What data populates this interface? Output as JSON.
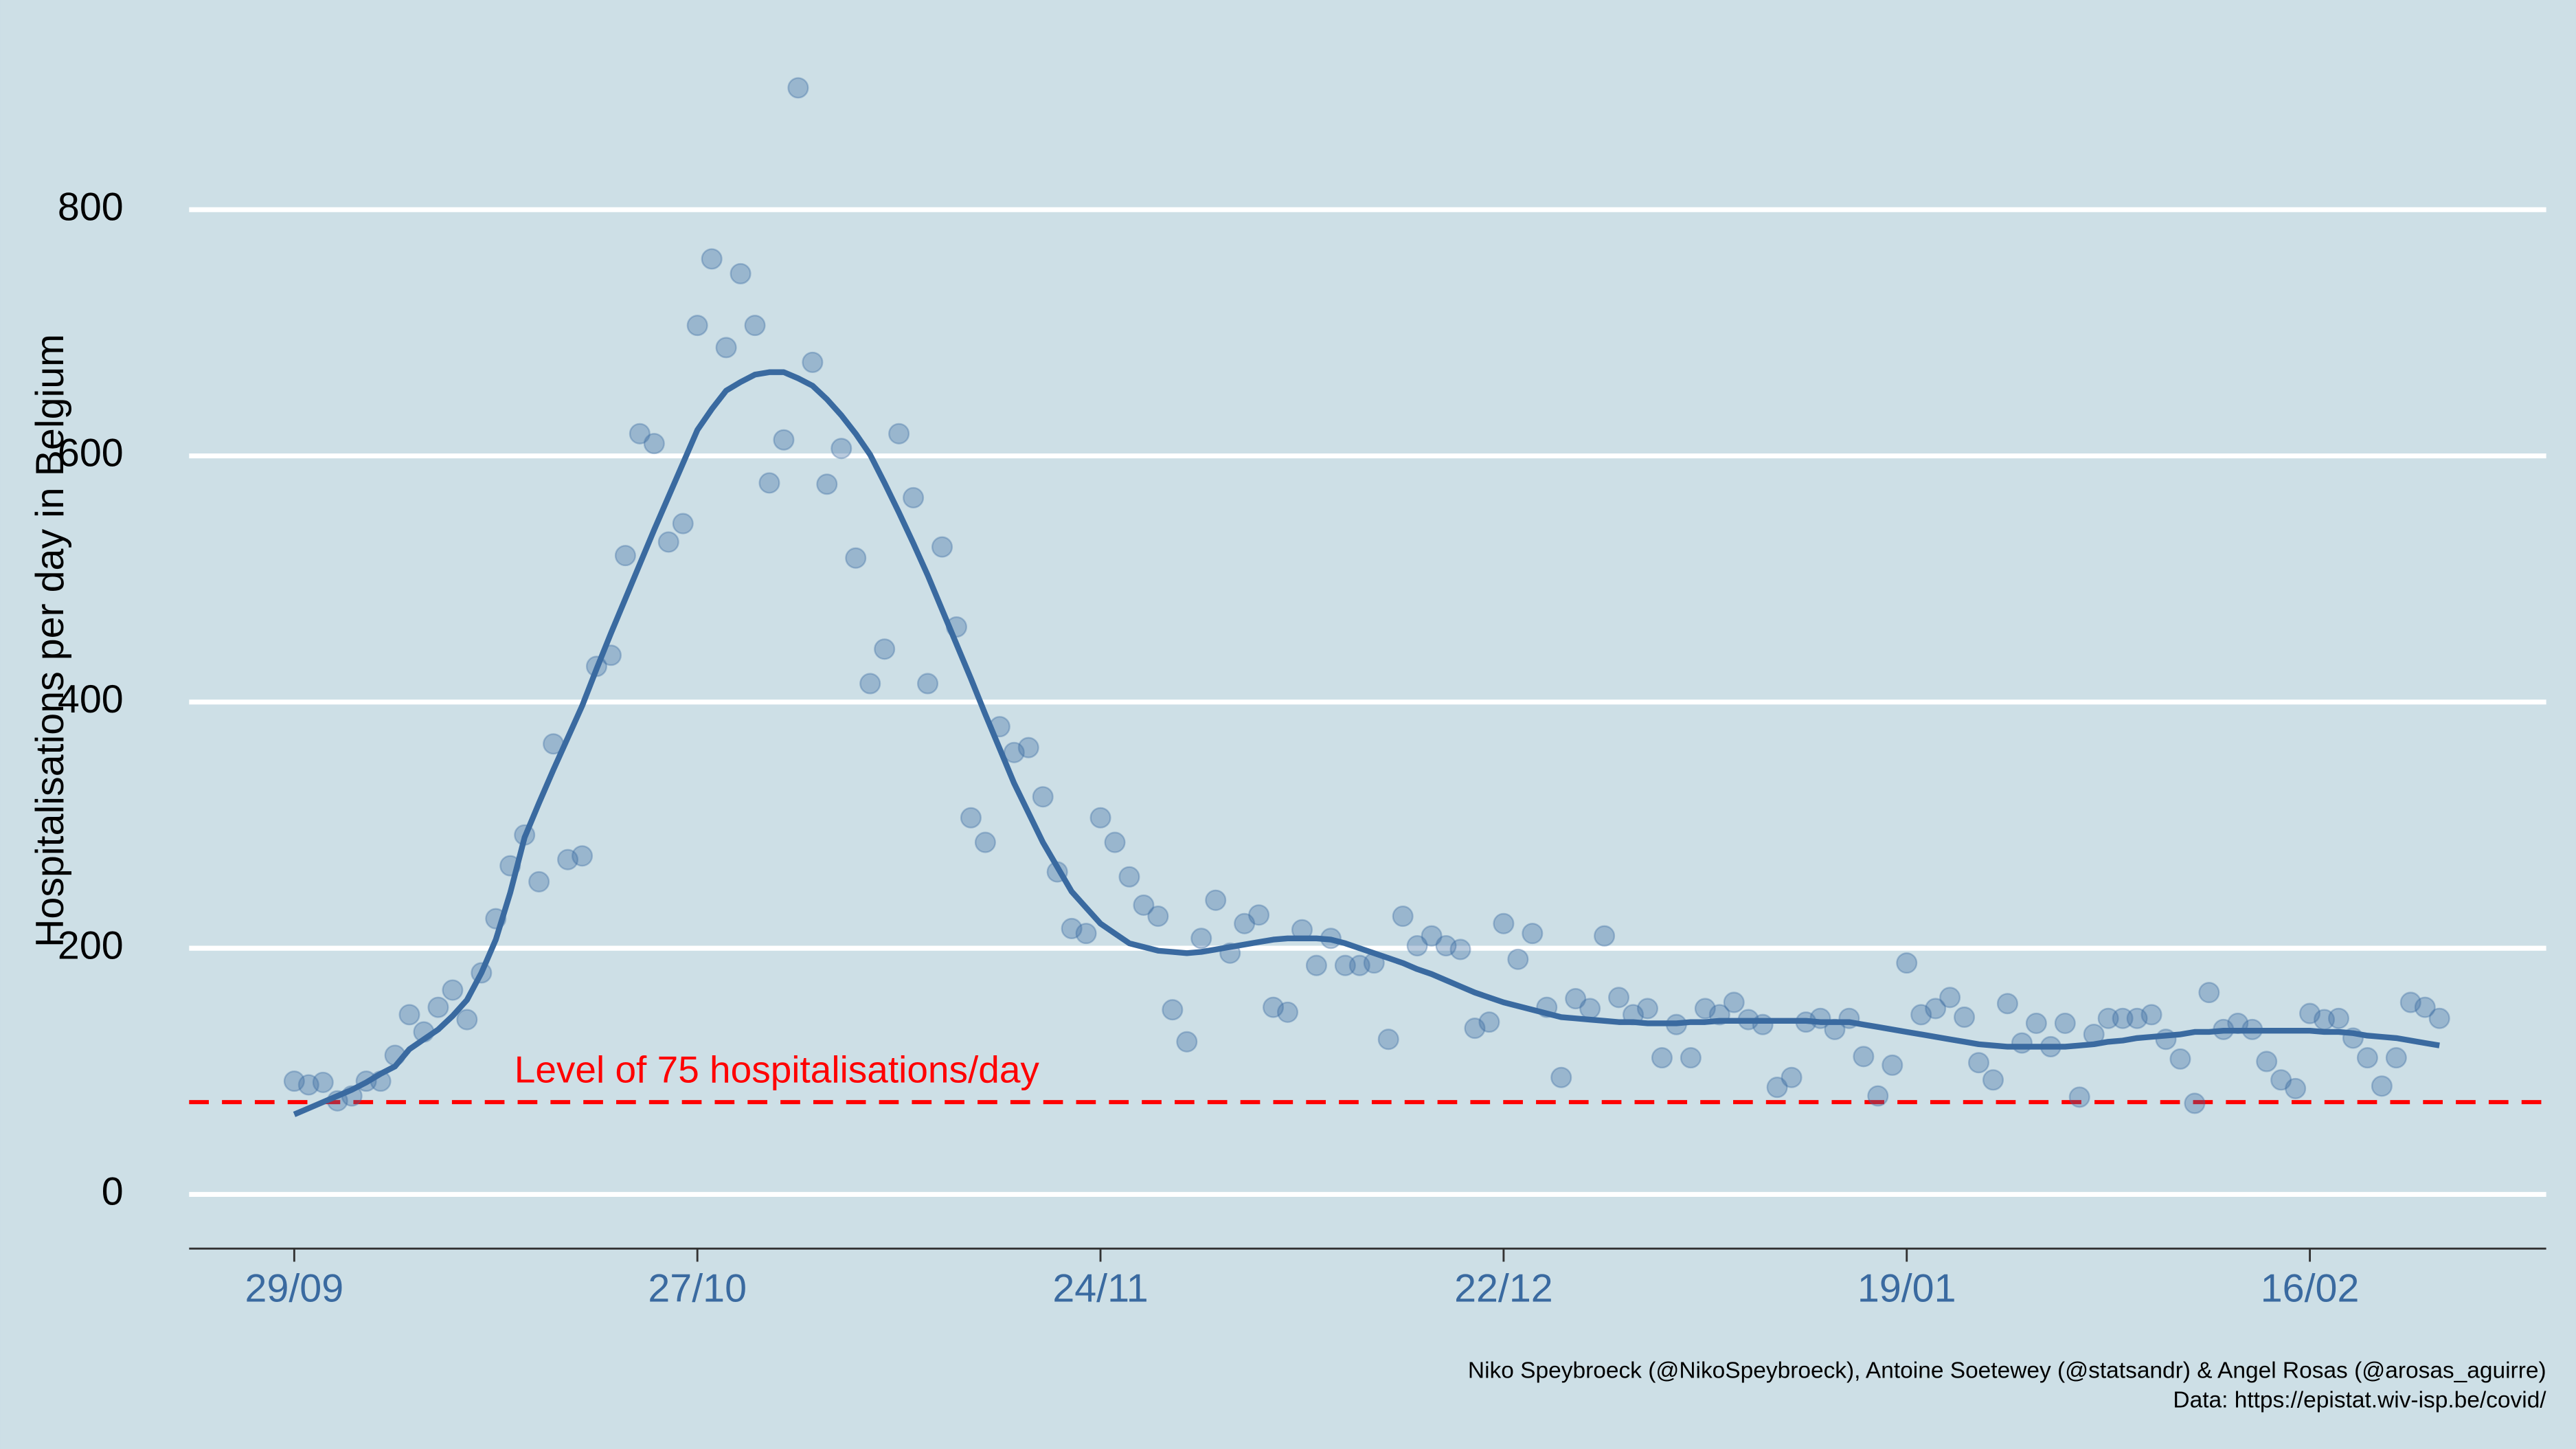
{
  "chart_data": {
    "type": "scatter",
    "y_label": "Hospitalisations per day in Belgium",
    "caption": [
      "Niko Speybroeck (@NikoSpeybroeck), Antoine Soetewey (@statsandr) & Angel Rosas (@arosas_aguirre)",
      "Data: https://epistat.wiv-isp.be/covid/"
    ],
    "categories": [
      "29/09",
      null,
      null,
      null,
      null,
      null,
      null,
      null,
      null,
      null,
      null,
      null,
      null,
      null,
      null,
      null,
      null,
      null,
      null,
      null,
      null,
      null,
      null,
      null,
      null,
      null,
      null,
      null,
      "27/10",
      null,
      null,
      null,
      null,
      null,
      null,
      null,
      null,
      null,
      null,
      null,
      null,
      null,
      null,
      null,
      null,
      null,
      null,
      null,
      null,
      null,
      null,
      null,
      null,
      null,
      null,
      null,
      "24/11",
      null,
      null,
      null,
      null,
      null,
      null,
      null,
      null,
      null,
      null,
      null,
      null,
      null,
      null,
      null,
      null,
      null,
      null,
      null,
      null,
      null,
      null,
      null,
      null,
      null,
      null,
      null,
      "22/12",
      null,
      null,
      null,
      null,
      null,
      null,
      null,
      null,
      null,
      null,
      null,
      null,
      null,
      null,
      null,
      null,
      null,
      null,
      null,
      null,
      null,
      null,
      null,
      null,
      null,
      null,
      null,
      "19/01",
      null,
      null,
      null,
      null,
      null,
      null,
      null,
      null,
      null,
      null,
      null,
      null,
      null,
      null,
      null,
      null,
      null,
      null,
      null,
      null,
      null,
      null,
      null,
      null,
      null,
      null,
      null,
      "16/02",
      null,
      null,
      null,
      null,
      null,
      null,
      null,
      null,
      null
    ],
    "series": [
      {
        "type": "scatter",
        "color": "#3a6aa0",
        "values": [
          92,
          89,
          91,
          76,
          80,
          92,
          92,
          113,
          146,
          132,
          152,
          166,
          142,
          180,
          224,
          267,
          292,
          254,
          366,
          272,
          275,
          429,
          438,
          519,
          618,
          610,
          530,
          545,
          706,
          760,
          688,
          748,
          706,
          578,
          613,
          899,
          676,
          577,
          606,
          517,
          415,
          443,
          618,
          566,
          415,
          526,
          461,
          306,
          286,
          380,
          359,
          363,
          323,
          262,
          216,
          212,
          306,
          286,
          258,
          235,
          226,
          150,
          124,
          208,
          239,
          196,
          220,
          227,
          152,
          148,
          215,
          186,
          208,
          186,
          186,
          188,
          126,
          226,
          202,
          210,
          202,
          199,
          135,
          140,
          220,
          191,
          212,
          152,
          95,
          159,
          151,
          210,
          160,
          146,
          151,
          111,
          138,
          111,
          151,
          146,
          156,
          142,
          138,
          87,
          95,
          140,
          143,
          134,
          143,
          112,
          80,
          105,
          188,
          146,
          151,
          160,
          144,
          107,
          93,
          155,
          123,
          139,
          120,
          139,
          79,
          130,
          143,
          143,
          143,
          146,
          126,
          110,
          74,
          164,
          134,
          139,
          134,
          108,
          93,
          86,
          147,
          142,
          143,
          127,
          111,
          88,
          111,
          156,
          152,
          143
        ]
      },
      {
        "type": "line",
        "color": "#3a6aa0",
        "values": [
          65,
          70,
          75,
          80,
          85,
          91,
          98,
          104,
          118,
          126,
          134,
          145,
          158,
          180,
          207,
          245,
          290,
          318,
          345,
          371,
          397,
          427,
          456,
          484,
          512,
          540,
          567,
          594,
          621,
          638,
          653,
          660,
          666,
          668,
          668,
          663,
          657,
          646,
          633,
          618,
          601,
          578,
          554,
          529,
          503,
          475,
          447,
          419,
          390,
          362,
          334,
          310,
          286,
          266,
          246,
          233,
          220,
          212,
          204,
          201,
          198,
          197,
          196,
          197,
          199,
          201,
          203,
          205,
          207,
          208,
          208,
          208,
          207,
          204,
          200,
          196,
          192,
          188,
          183,
          179,
          174,
          169,
          164,
          160,
          156,
          153,
          150,
          147,
          144,
          143,
          142,
          141,
          140,
          140,
          139,
          139,
          139,
          140,
          140,
          141,
          141,
          141,
          141,
          141,
          141,
          141,
          140,
          140,
          140,
          138,
          136,
          134,
          132,
          130,
          128,
          126,
          124,
          122,
          121,
          120,
          120,
          120,
          120,
          120,
          121,
          122,
          124,
          125,
          127,
          128,
          129,
          130,
          132,
          132,
          133,
          133,
          133,
          133,
          133,
          133,
          133,
          132,
          132,
          131,
          129,
          128,
          127,
          125,
          123,
          121
        ]
      }
    ],
    "reference_line": {
      "value": 75,
      "color": "#ff0000",
      "label": "Level of 75 hospitalisations/day"
    },
    "ylim": [
      -44,
      937
    ],
    "yticks": [
      0,
      200,
      400,
      600,
      800
    ],
    "grid": true
  }
}
